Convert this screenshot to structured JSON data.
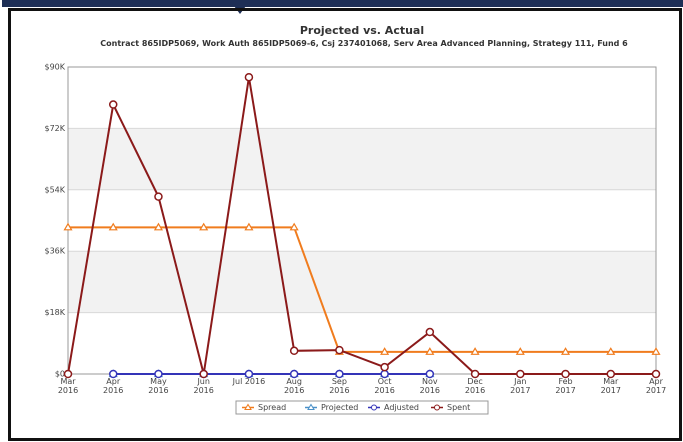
{
  "chart_data": {
    "type": "line",
    "title": "Projected vs. Actual",
    "subtitle": "Contract 865IDP5069, Work Auth 865IDP5069-6, Csj 237401068, Serv Area Advanced Planning, Strategy 111, Fund 6",
    "categories": [
      "Mar 2016",
      "Apr 2016",
      "May 2016",
      "Jun 2016",
      "Jul 2016",
      "Aug 2016",
      "Sep 2016",
      "Oct 2016",
      "Nov 2016",
      "Dec 2016",
      "Jan 2017",
      "Feb 2017",
      "Mar 2017",
      "Apr 2017"
    ],
    "series": [
      {
        "name": "Spread",
        "color": "#f07c1e",
        "marker": "triangle",
        "values": [
          43000,
          43000,
          43000,
          43000,
          43000,
          43000,
          6500,
          6500,
          6500,
          6500,
          6500,
          6500,
          6500,
          6500
        ]
      },
      {
        "name": "Projected",
        "color": "#4a90c8",
        "marker": "triangle",
        "values": [
          null,
          0,
          0,
          0,
          0,
          0,
          0,
          0,
          0,
          null,
          null,
          null,
          null,
          null
        ]
      },
      {
        "name": "Adjusted",
        "color": "#3434b8",
        "marker": "circle",
        "values": [
          null,
          0,
          0,
          0,
          0,
          0,
          0,
          0,
          0,
          null,
          null,
          null,
          null,
          null
        ]
      },
      {
        "name": "Spent",
        "color": "#8b1a1a",
        "marker": "circle",
        "values": [
          0,
          79000,
          52000,
          0,
          87000,
          6800,
          7000,
          2000,
          12300,
          0,
          0,
          0,
          0,
          0
        ]
      }
    ],
    "ylim": [
      0,
      90000
    ],
    "yticks": [
      {
        "value": 0,
        "label": "$0"
      },
      {
        "value": 18000,
        "label": "$18K"
      },
      {
        "value": 36000,
        "label": "$36K"
      },
      {
        "value": 54000,
        "label": "$54K"
      },
      {
        "value": 72000,
        "label": "$72K"
      },
      {
        "value": 90000,
        "label": "$90K"
      }
    ],
    "grid": true,
    "legend": "bottom"
  }
}
